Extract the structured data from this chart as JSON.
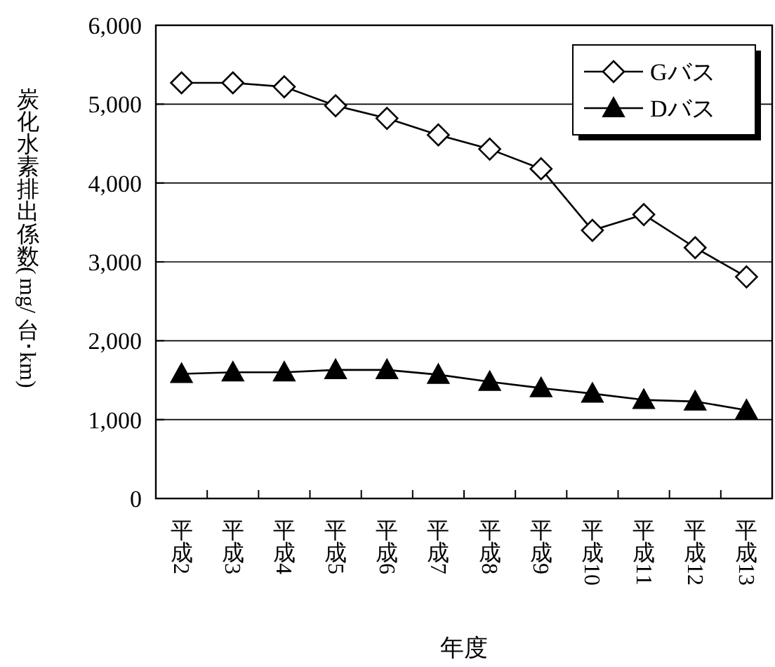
{
  "chart_data": {
    "type": "line",
    "xlabel": "年度",
    "ylabel": "炭化水素排出係数(mg/台･km)",
    "categories": [
      "平成2",
      "平成3",
      "平成4",
      "平成5",
      "平成6",
      "平成7",
      "平成8",
      "平成9",
      "平成10",
      "平成11",
      "平成12",
      "平成13"
    ],
    "series": [
      {
        "name": "Gバス",
        "color": "#000000",
        "marker": "diamond",
        "values": [
          5270,
          5270,
          5220,
          4980,
          4820,
          4610,
          4430,
          4180,
          3400,
          3600,
          3180,
          2810
        ]
      },
      {
        "name": "Dバス",
        "color": "#000000",
        "marker": "triangle",
        "values": [
          1580,
          1600,
          1600,
          1630,
          1630,
          1570,
          1480,
          1400,
          1330,
          1250,
          1230,
          1120
        ]
      }
    ],
    "ylim": [
      0,
      6000
    ],
    "yticks": [
      {
        "value": 0,
        "label": "0"
      },
      {
        "value": 1000,
        "label": "1,000"
      },
      {
        "value": 2000,
        "label": "2,000"
      },
      {
        "value": 3000,
        "label": "3,000"
      },
      {
        "value": 4000,
        "label": "4,000"
      },
      {
        "value": 5000,
        "label": "5,000"
      },
      {
        "value": 6000,
        "label": "6,000"
      }
    ],
    "grid": "y",
    "legend": "top right",
    "line_style": "solid"
  }
}
